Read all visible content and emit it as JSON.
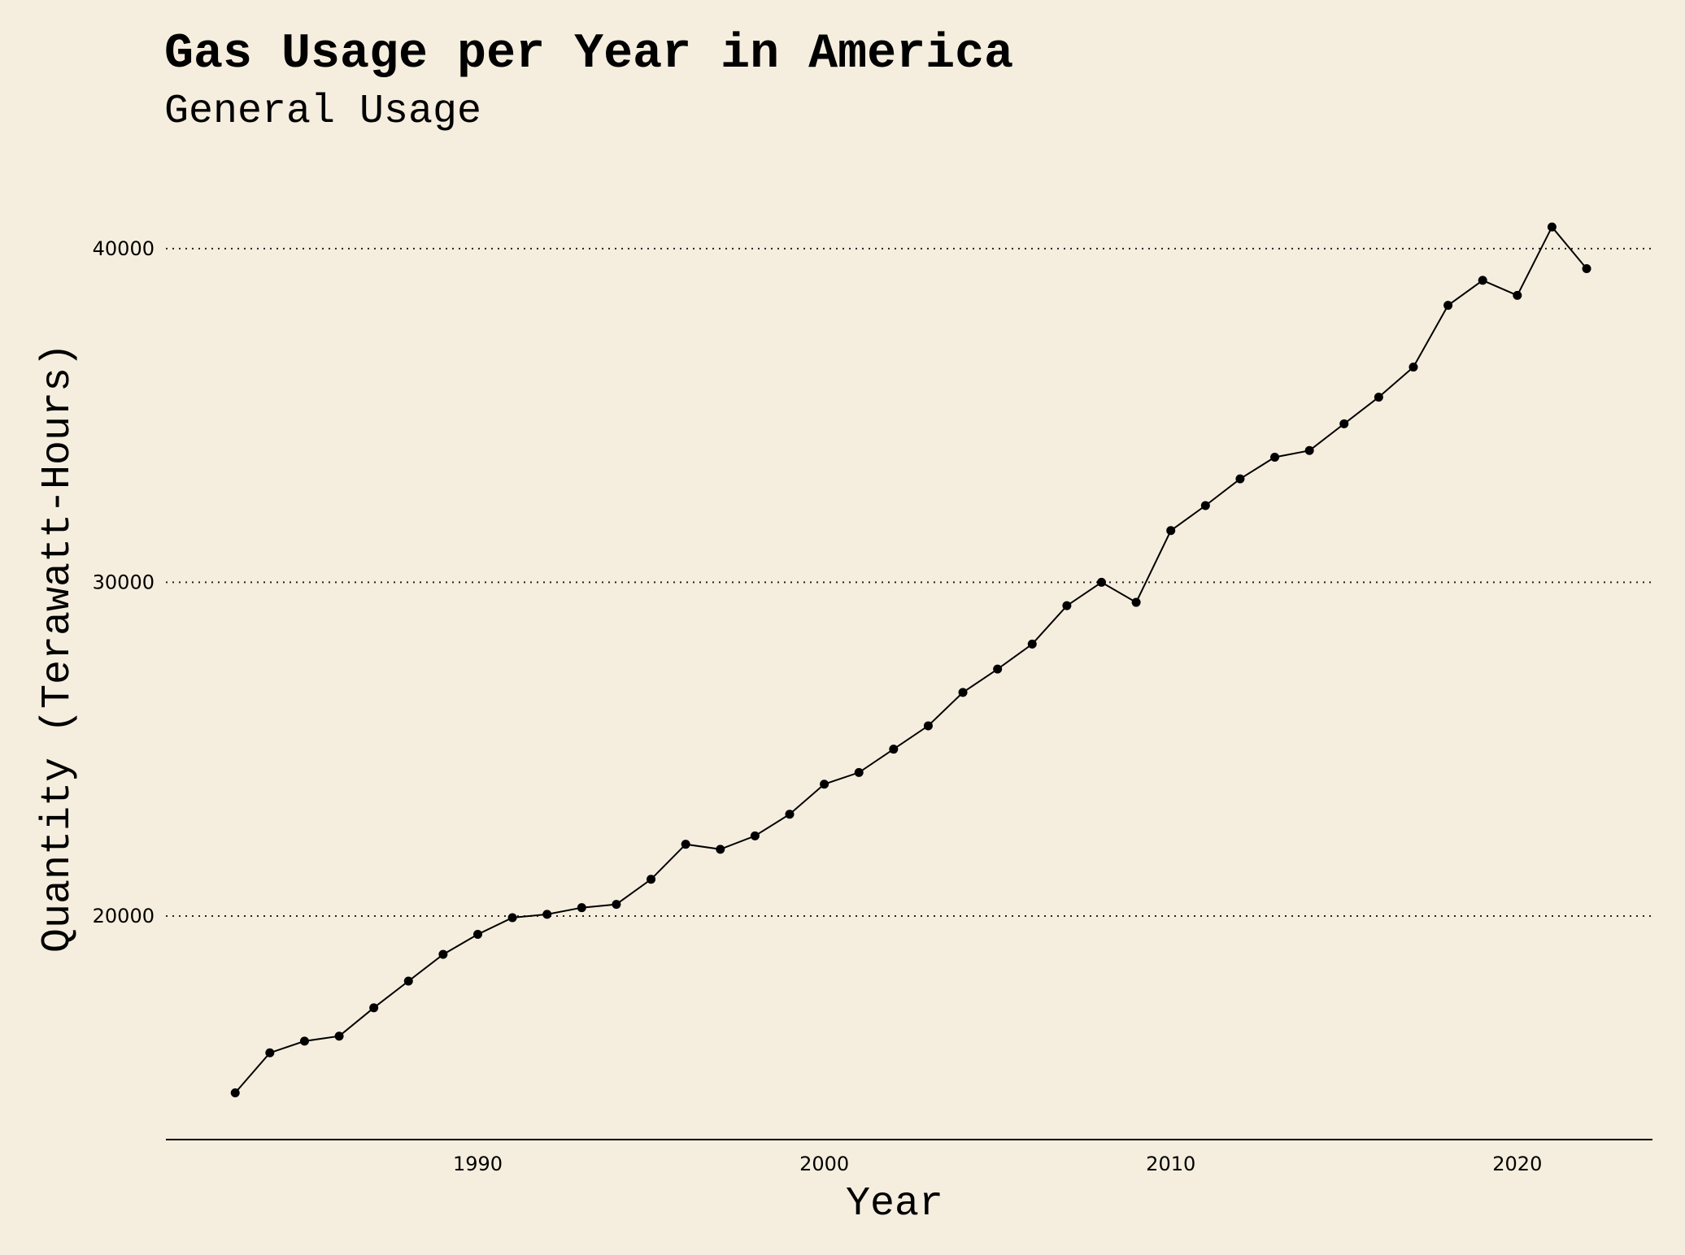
{
  "chart_data": {
    "type": "line",
    "title": "Gas Usage per Year in America",
    "subtitle": "General Usage",
    "xlabel": "Year",
    "ylabel": "Quantity (Terawatt-Hours)",
    "xlim": [
      1981,
      2023.9
    ],
    "ylim": [
      13300,
      41800
    ],
    "xticks": [
      1990,
      2000,
      2010,
      2020
    ],
    "yticks": [
      20000,
      30000,
      40000
    ],
    "grid": "horizontal-dotted",
    "series": [
      {
        "name": "Gas Usage",
        "x": [
          1983,
          1984,
          1985,
          1986,
          1987,
          1988,
          1989,
          1990,
          1991,
          1992,
          1993,
          1994,
          1995,
          1996,
          1997,
          1998,
          1999,
          2000,
          2001,
          2002,
          2003,
          2004,
          2005,
          2006,
          2007,
          2008,
          2009,
          2010,
          2011,
          2012,
          2013,
          2014,
          2015,
          2016,
          2017,
          2018,
          2019,
          2020,
          2021,
          2022
        ],
        "y": [
          14700,
          15900,
          16250,
          16400,
          17250,
          18050,
          18850,
          19450,
          19950,
          20050,
          20250,
          20350,
          21100,
          22150,
          22000,
          22400,
          23050,
          23950,
          24300,
          25000,
          25700,
          26700,
          27400,
          28150,
          29300,
          30000,
          29400,
          31550,
          32300,
          33100,
          33750,
          33950,
          34750,
          35550,
          36450,
          38300,
          39050,
          38600,
          40650,
          39400
        ]
      }
    ]
  }
}
